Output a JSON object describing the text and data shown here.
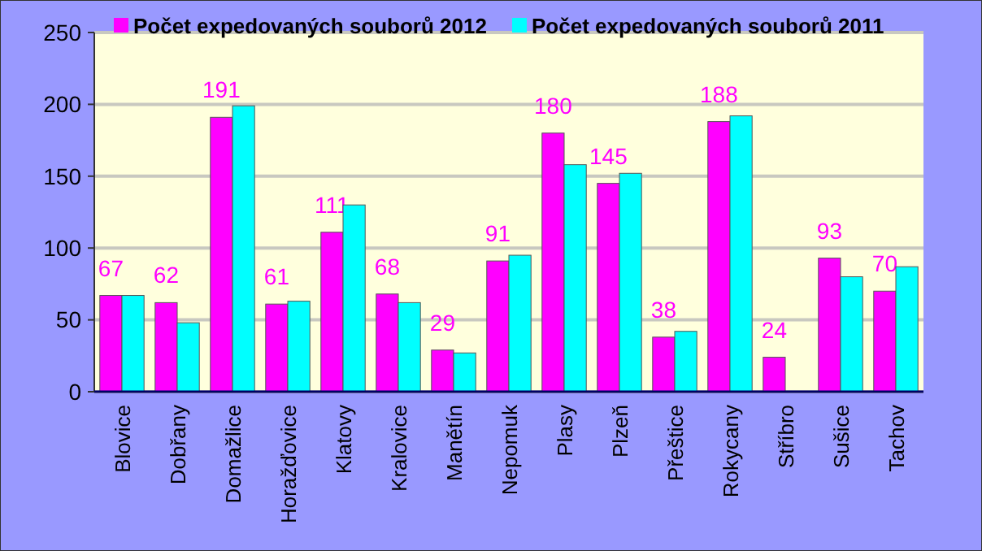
{
  "chart_data": {
    "type": "bar",
    "categories": [
      "Blovice",
      "Dobřany",
      "Domažlice",
      "Horažďovice",
      "Klatovy",
      "Kralovice",
      "Manětín",
      "Nepomuk",
      "Plasy",
      "Plzeň",
      "Přeštice",
      "Rokycany",
      "Stříbro",
      "Sušice",
      "Tachov"
    ],
    "series": [
      {
        "name": "Počet expedovaných souborů 2012",
        "color": "#ff00ff",
        "values": [
          67,
          62,
          191,
          61,
          111,
          68,
          29,
          91,
          180,
          145,
          38,
          188,
          24,
          93,
          70
        ],
        "value_labels": [
          "67",
          "62",
          "191",
          "61",
          "111",
          "68",
          "29",
          "91",
          "180",
          "145",
          "38",
          "188",
          "24",
          "93",
          "70"
        ]
      },
      {
        "name": "Počet expedovaných souborů 2011",
        "color": "#00ffff",
        "values": [
          67,
          48,
          199,
          63,
          130,
          62,
          27,
          95,
          158,
          152,
          42,
          192,
          null,
          80,
          87
        ]
      }
    ],
    "ylim": [
      0,
      250
    ],
    "yticks": [
      0,
      50,
      100,
      150,
      200,
      250
    ],
    "grid": "y",
    "legend": "top"
  }
}
